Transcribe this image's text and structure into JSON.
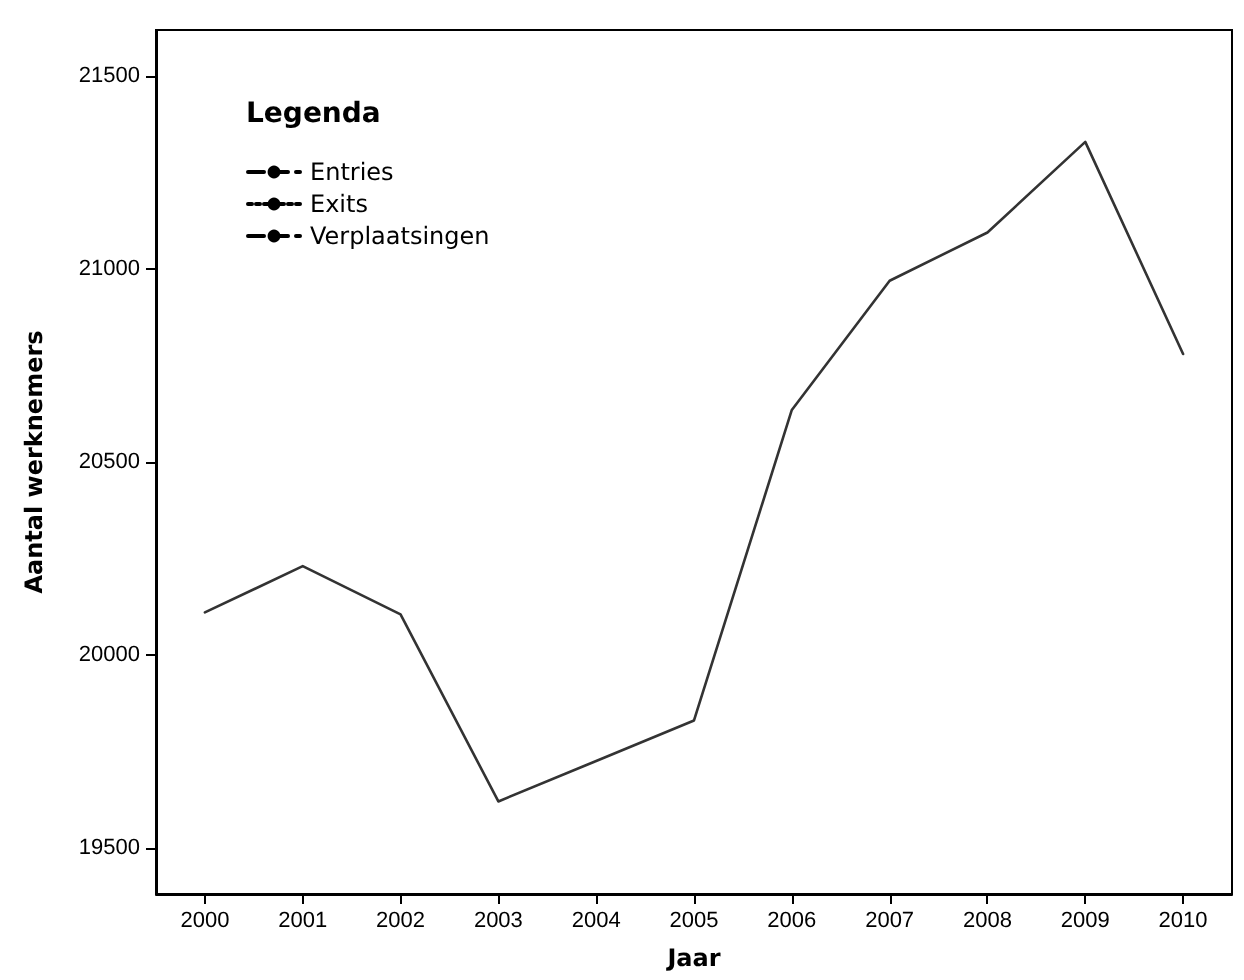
{
  "chart_data": {
    "type": "line",
    "xlabel": "Jaar",
    "ylabel": "Aantal werknemers",
    "legend_title": "Legenda",
    "legend": "top left",
    "grid": false,
    "marker": "none",
    "categories": [
      "2000",
      "2001",
      "2002",
      "2003",
      "2004",
      "2005",
      "2006",
      "2007",
      "2008",
      "2009",
      "2010"
    ],
    "ylim": [
      19380,
      21620
    ],
    "yticks": [
      19500,
      20000,
      20500,
      21000,
      21500
    ],
    "series": [
      {
        "name": "Entries",
        "color": "#000000",
        "line_style": "dashed",
        "values": [
          null,
          null,
          null,
          null,
          null,
          null,
          null,
          null,
          null,
          null,
          null
        ]
      },
      {
        "name": "Exits",
        "color": "#000000",
        "line_style": "dotted",
        "values": [
          null,
          null,
          null,
          null,
          null,
          null,
          null,
          null,
          null,
          null,
          null
        ]
      },
      {
        "name": "Verplaatsingen",
        "color": "#000000",
        "line_style": "dashed",
        "values": [
          null,
          null,
          null,
          null,
          null,
          null,
          null,
          null,
          null,
          null,
          null
        ]
      },
      {
        "color": "#333333",
        "line_style": "solid",
        "values": [
          20110,
          20230,
          20105,
          19620,
          19725,
          19830,
          20635,
          20970,
          21095,
          21330,
          20780
        ]
      }
    ]
  }
}
